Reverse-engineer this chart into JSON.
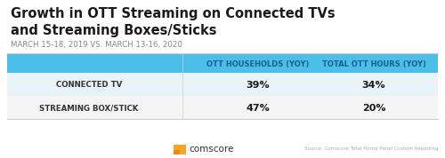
{
  "title": "Growth in OTT Streaming on Connected TVs\nand Streaming Boxes/Sticks",
  "subtitle": "MARCH 15-18, 2019 VS. MARCH 13-16, 2020",
  "col1_header": "OTT HOUSEHOLDS (YOY)",
  "col2_header": "TOTAL OTT HOURS (YOY)",
  "rows": [
    {
      "label": "CONNECTED TV",
      "col1": "39%",
      "col2": "34%"
    },
    {
      "label": "STREAMING BOX/STICK",
      "col1": "47%",
      "col2": "20%"
    }
  ],
  "header_bg": "#4bbfea",
  "header_text_color": "#1a5f8a",
  "row1_bg": "#e8f4fa",
  "row2_bg": "#f5f5f5",
  "title_color": "#1a1a1a",
  "subtitle_color": "#888888",
  "label_color": "#333333",
  "value_color": "#1a1a1a",
  "source_text": "Source: Comscore Total Home Panel Custom Reporting",
  "logo_text": "comscore",
  "background_color": "#ffffff",
  "fig_width": 5.0,
  "fig_height": 1.78
}
